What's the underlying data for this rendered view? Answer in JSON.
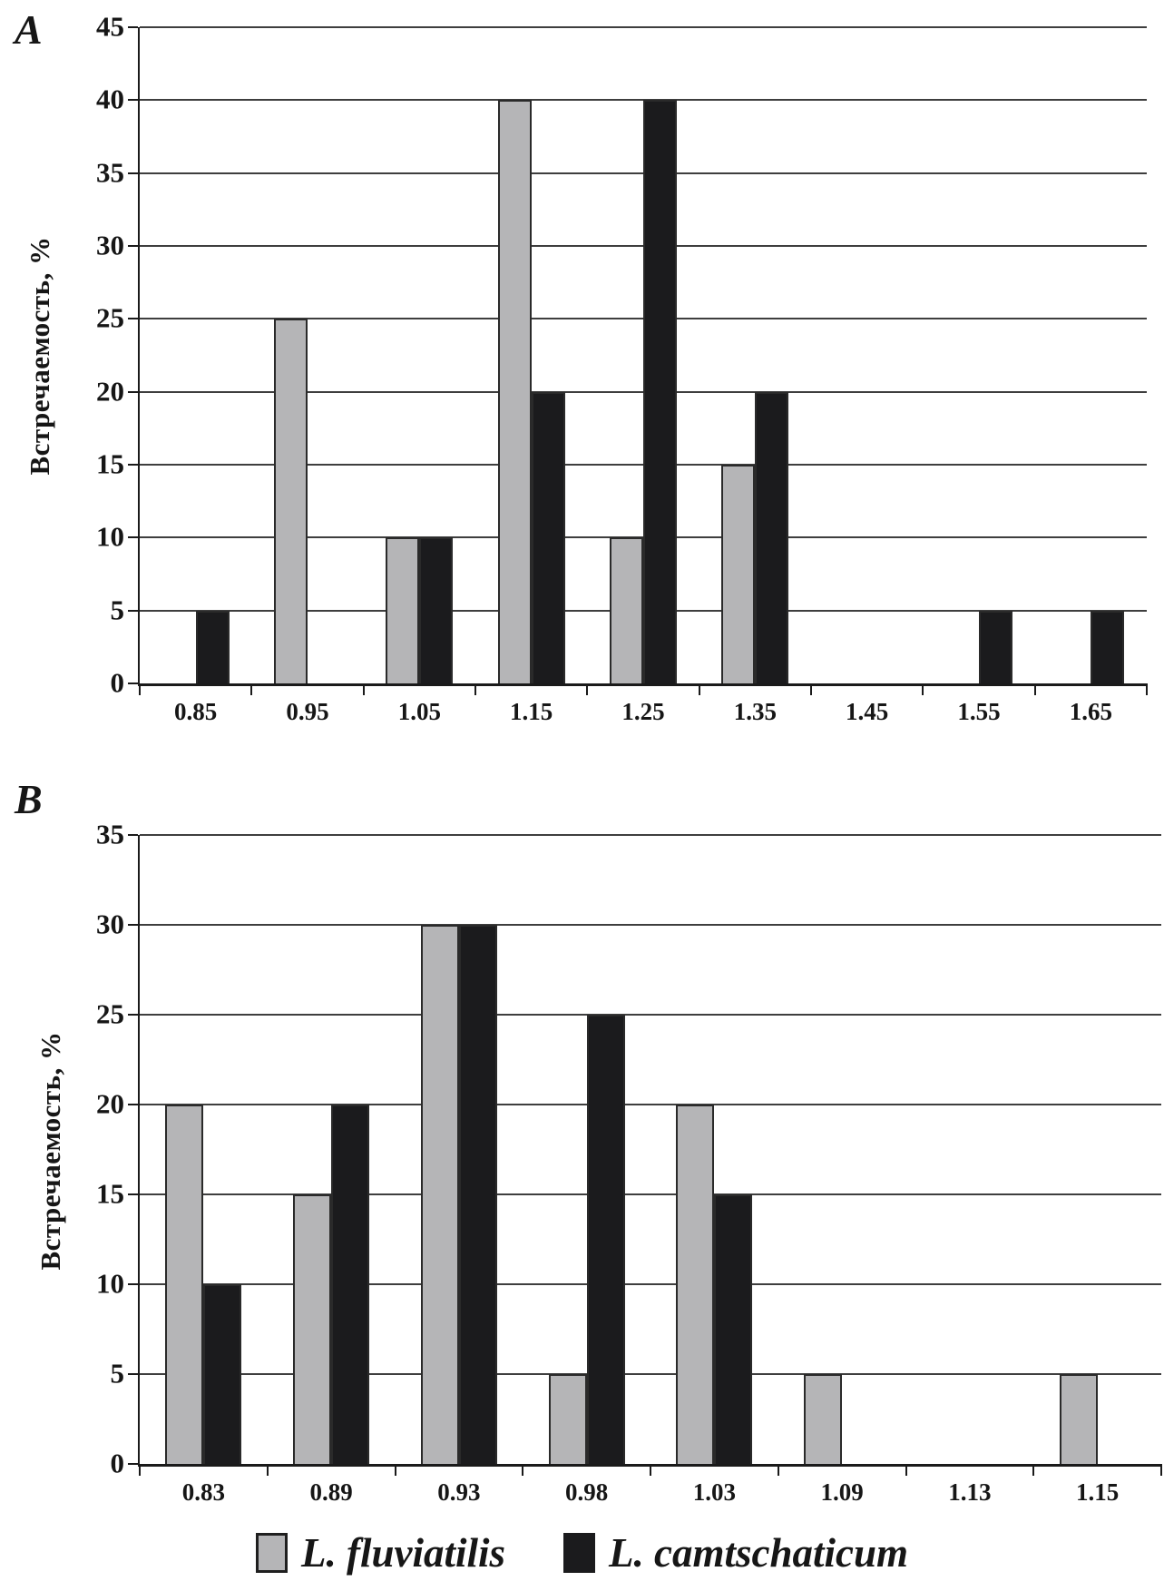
{
  "figure": {
    "y_axis_title": "Встречаемость, %",
    "bar_outline_color": "#2a2a2a",
    "gridline_color": "#3e3e3e"
  },
  "chart_data": [
    {
      "type": "bar",
      "panel_label": "A",
      "title": "",
      "xlabel": "",
      "ylabel": "Встречаемость, %",
      "ylim": [
        0,
        45
      ],
      "y_step": 5,
      "grid": "horizontal",
      "legend_position": "bottom",
      "y_ticks": [
        "45",
        "40",
        "35",
        "30",
        "25",
        "20",
        "15",
        "10",
        "5",
        "0"
      ],
      "categories": [
        "0.85",
        "0.95",
        "1.05",
        "1.15",
        "1.25",
        "1.35",
        "1.45",
        "1.55",
        "1.65"
      ],
      "series": [
        {
          "name": "L. fluviatilis",
          "color": "#b5b5b7",
          "values": [
            0,
            25,
            10,
            40,
            10,
            15,
            0,
            0,
            0
          ]
        },
        {
          "name": "L. camtschaticum",
          "color": "#1b1b1d",
          "values": [
            5,
            0,
            10,
            20,
            40,
            20,
            0,
            5,
            5
          ]
        }
      ]
    },
    {
      "type": "bar",
      "panel_label": "B",
      "title": "",
      "xlabel": "",
      "ylabel": "Встречаемость, %",
      "ylim": [
        0,
        35
      ],
      "y_step": 5,
      "grid": "horizontal",
      "legend_position": "bottom",
      "y_ticks": [
        "35",
        "30",
        "25",
        "20",
        "15",
        "10",
        "5",
        "0"
      ],
      "categories": [
        "0.83",
        "0.89",
        "0.93",
        "0.98",
        "1.03",
        "1.09",
        "1.13",
        "1.15"
      ],
      "series": [
        {
          "name": "L. fluviatilis",
          "color": "#b5b5b7",
          "values": [
            20,
            15,
            30,
            5,
            20,
            5,
            0,
            5
          ]
        },
        {
          "name": "L. camtschaticum",
          "color": "#1b1b1d",
          "values": [
            10,
            20,
            30,
            25,
            15,
            0,
            0,
            0
          ]
        }
      ]
    }
  ],
  "legend": {
    "items": [
      {
        "label": "L. fluviatilis",
        "color": "#b5b5b7"
      },
      {
        "label": "L. camtschaticum",
        "color": "#1b1b1d"
      }
    ]
  }
}
